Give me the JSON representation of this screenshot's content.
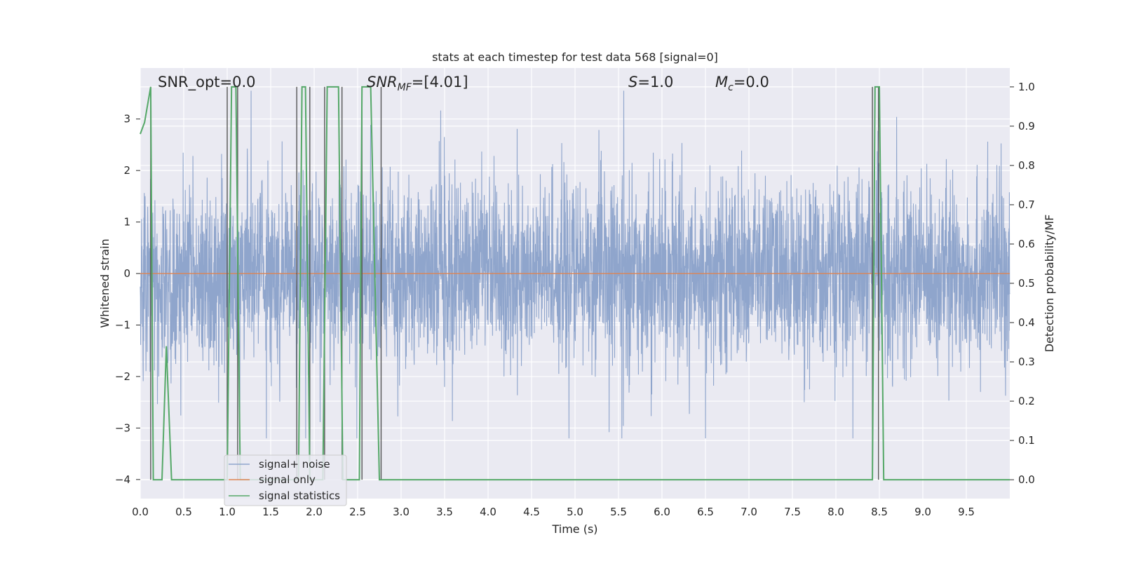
{
  "chart_data": {
    "type": "line",
    "title": "stats at each timestep for test data 568 [signal=0]",
    "xlabel": "Time (s)",
    "ylabel": "Whitened strain",
    "y2label": "Detection probability/MF",
    "xlim": [
      0.0,
      10.0
    ],
    "ylim": [
      -4.37,
      3.99
    ],
    "y2lim": [
      -0.048,
      1.048
    ],
    "x_ticks": [
      "0.0",
      "0.5",
      "1.0",
      "1.5",
      "2.0",
      "2.5",
      "3.0",
      "3.5",
      "4.0",
      "4.5",
      "5.0",
      "5.5",
      "6.0",
      "6.5",
      "7.0",
      "7.5",
      "8.0",
      "8.5",
      "9.0",
      "9.5"
    ],
    "y_ticks": [
      "3",
      "2",
      "1",
      "0",
      "−1",
      "−2",
      "−3",
      "−4"
    ],
    "y2_ticks": [
      "1.0",
      "0.9",
      "0.8",
      "0.7",
      "0.6",
      "0.5",
      "0.4",
      "0.3",
      "0.2",
      "0.1",
      "0.0"
    ],
    "annotations": {
      "snr_opt": "SNR_opt=0.0",
      "snr_mf_main": "SNR",
      "snr_mf_sub": "MF",
      "snr_mf_val": "=[4.01]",
      "s_main": "S",
      "s_val": "=1.0",
      "mc_main": "M",
      "mc_sub": "c",
      "mc_val": "=0.0"
    },
    "legend": {
      "position": "lower-left",
      "entries": [
        "signal+ noise",
        "signal only",
        "signal statistics"
      ]
    },
    "colors": {
      "noise": "#8fa5cc",
      "signal": "#dd8452",
      "stats": "#55a868",
      "vlines": "#555555",
      "plot_bg": "#eaeaf2",
      "grid": "#ffffff"
    },
    "series": [
      {
        "name": "signal+ noise",
        "style": "dense noise, std ~1, range about -3.2 to 3.5",
        "seed": 568,
        "n_points": 4096,
        "std": 1.0
      },
      {
        "name": "signal only",
        "x": [
          0.0,
          10.0
        ],
        "y": [
          0.0,
          0.0
        ]
      },
      {
        "name": "signal statistics",
        "x": [
          0.0,
          0.05,
          0.12,
          0.15,
          0.18,
          0.25,
          0.3,
          0.36,
          0.4,
          0.98,
          1.0,
          1.05,
          1.1,
          1.15,
          1.2,
          1.78,
          1.82,
          1.86,
          1.9,
          1.95,
          2.1,
          2.15,
          2.2,
          2.28,
          2.33,
          2.38,
          2.45,
          2.52,
          2.55,
          2.6,
          2.65,
          2.75,
          2.8,
          2.86,
          8.4,
          8.42,
          8.45,
          8.5,
          8.55,
          10.0
        ],
        "y": [
          0.88,
          0.91,
          1.0,
          0.0,
          0.0,
          0.0,
          0.34,
          0.0,
          0.0,
          0.0,
          0.0,
          1.0,
          1.0,
          0.0,
          0.0,
          0.0,
          0.0,
          1.0,
          1.0,
          0.0,
          0.0,
          1.0,
          1.0,
          1.0,
          0.0,
          0.0,
          0.0,
          0.0,
          1.0,
          1.0,
          1.0,
          0.0,
          0.0,
          0.0,
          0.0,
          0.0,
          1.0,
          1.0,
          0.0,
          0.0
        ]
      }
    ],
    "vlines_x": [
      0.12,
      1.0,
      1.12,
      1.8,
      1.95,
      2.12,
      2.32,
      2.55,
      2.77,
      8.42,
      8.49
    ]
  }
}
